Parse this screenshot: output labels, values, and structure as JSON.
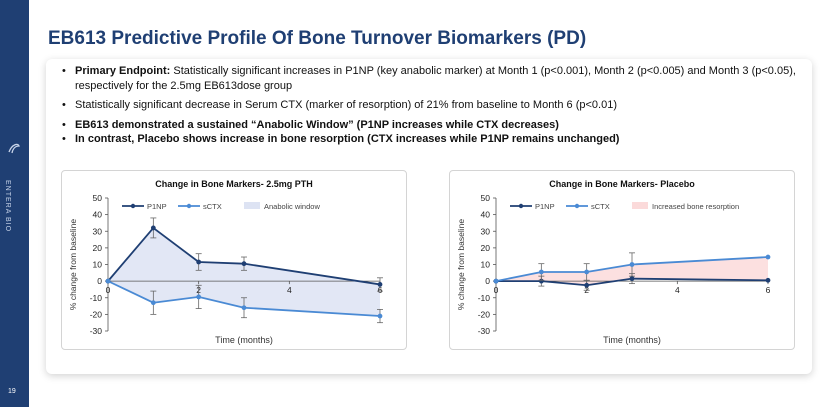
{
  "slide": {
    "title": "EB613 Predictive Profile Of Bone Turnover Biomarkers (PD)",
    "page_number": "19",
    "brand": "ENTERA BIO"
  },
  "bullets": [
    {
      "lead": "Primary Endpoint:",
      "text": " Statistically significant increases in P1NP (key anabolic marker) at Month 1 (p<0.001), Month 2 (p<0.005) and Month 3 (p<0.05), respectively for the 2.5mg EB613dose group"
    },
    {
      "lead": "",
      "text": "Statistically significant decrease in Serum CTX (marker of resorption) of 21% from baseline to Month 6 (p<0.01)"
    },
    {
      "lead": "EB613 demonstrated a sustained “Anabolic Window” (P1NP increases while CTX decreases)",
      "text": ""
    },
    {
      "lead": "In contrast, Placebo shows increase in bone resorption (CTX increases while P1NP remains unchanged)",
      "text": ""
    }
  ],
  "chart_data": [
    {
      "type": "line",
      "title": "Change in Bone Markers- 2.5mg PTH",
      "xlabel": "Time (months)",
      "ylabel": "% change from baseline",
      "xlim": [
        0,
        6
      ],
      "ylim": [
        -30,
        50
      ],
      "xticks": [
        0,
        2,
        4,
        6
      ],
      "yticks": [
        -30,
        -20,
        -10,
        0,
        10,
        20,
        30,
        40,
        50
      ],
      "legend_placement": "top",
      "shaded_label": "Anabolic window",
      "shaded_color": "#dde3f3",
      "series": [
        {
          "name": "P1NP",
          "color": "#1f3f73",
          "x": [
            0,
            1,
            2,
            3,
            6
          ],
          "values": [
            0,
            32,
            11.5,
            10.5,
            -2
          ],
          "errors": [
            0,
            6,
            5,
            4,
            4
          ]
        },
        {
          "name": "sCTX",
          "color": "#4a8ad4",
          "x": [
            0,
            1,
            2,
            3,
            6
          ],
          "values": [
            0,
            -13,
            -9.5,
            -16,
            -21
          ],
          "errors": [
            0,
            7,
            7,
            6,
            4
          ]
        }
      ]
    },
    {
      "type": "line",
      "title": "Change in Bone Markers- Placebo",
      "xlabel": "Time (months)",
      "ylabel": "% change from baseline",
      "xlim": [
        0,
        6
      ],
      "ylim": [
        -30,
        50
      ],
      "xticks": [
        0,
        2,
        4,
        6
      ],
      "yticks": [
        -30,
        -20,
        -10,
        0,
        10,
        20,
        30,
        40,
        50
      ],
      "legend_placement": "top",
      "shaded_label": "Increased bone resorption",
      "shaded_color": "#fbdada",
      "series": [
        {
          "name": "P1NP",
          "color": "#1f3f73",
          "x": [
            0,
            1,
            2,
            3,
            6
          ],
          "values": [
            0,
            0,
            -2.5,
            1.5,
            0.5
          ],
          "errors": [
            0,
            3,
            3,
            3,
            0
          ]
        },
        {
          "name": "sCTX",
          "color": "#4a8ad4",
          "x": [
            0,
            1,
            2,
            3,
            6
          ],
          "values": [
            0,
            5.5,
            5.5,
            10,
            14.5
          ],
          "errors": [
            0,
            5,
            5,
            7,
            0
          ]
        }
      ]
    }
  ]
}
